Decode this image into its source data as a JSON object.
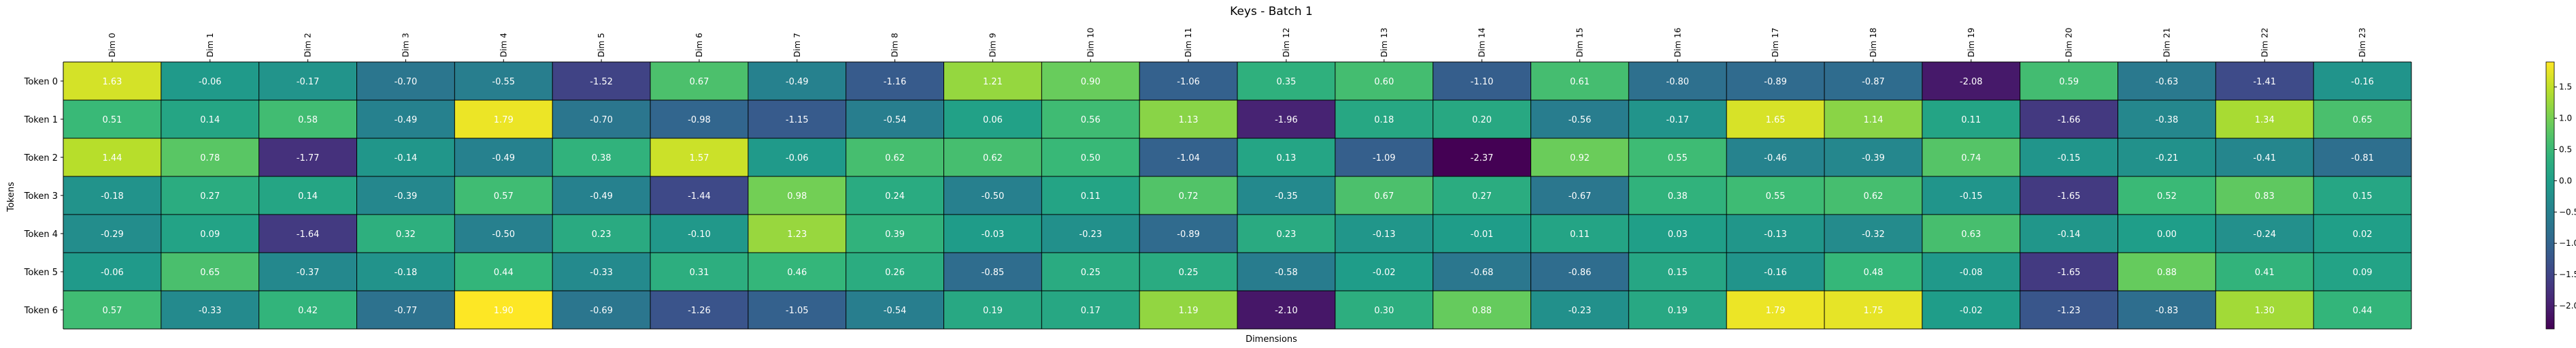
{
  "chart_data": {
    "type": "heatmap",
    "title": "Keys - Batch 1",
    "xlabel": "Dimensions",
    "ylabel": "Tokens",
    "x_labels": [
      "Dim 0",
      "Dim 1",
      "Dim 2",
      "Dim 3",
      "Dim 4",
      "Dim 5",
      "Dim 6",
      "Dim 7",
      "Dim 8",
      "Dim 9",
      "Dim 10",
      "Dim 11",
      "Dim 12",
      "Dim 13",
      "Dim 14",
      "Dim 15",
      "Dim 16",
      "Dim 17",
      "Dim 18",
      "Dim 19",
      "Dim 20",
      "Dim 21",
      "Dim 22",
      "Dim 23"
    ],
    "y_labels": [
      "Token 0",
      "Token 1",
      "Token 2",
      "Token 3",
      "Token 4",
      "Token 5",
      "Token 6"
    ],
    "values": [
      [
        1.63,
        -0.06,
        -0.17,
        -0.7,
        -0.55,
        -1.52,
        0.67,
        -0.49,
        -1.16,
        1.21,
        0.9,
        -1.06,
        0.35,
        0.6,
        -1.1,
        0.61,
        -0.8,
        -0.89,
        -0.87,
        -2.08,
        0.59,
        -0.63,
        -1.41,
        -0.16
      ],
      [
        0.51,
        0.14,
        0.58,
        -0.49,
        1.79,
        -0.7,
        -0.98,
        -1.15,
        -0.54,
        0.06,
        0.56,
        1.13,
        -1.96,
        0.18,
        0.2,
        -0.56,
        -0.17,
        1.65,
        1.14,
        0.11,
        -1.66,
        -0.38,
        1.34,
        0.65
      ],
      [
        1.44,
        0.78,
        -1.77,
        -0.14,
        -0.49,
        0.38,
        1.57,
        -0.06,
        0.62,
        0.62,
        0.5,
        -1.04,
        0.13,
        -1.09,
        -2.37,
        0.92,
        0.55,
        -0.46,
        -0.39,
        0.74,
        -0.15,
        -0.21,
        -0.41,
        -0.81
      ],
      [
        -0.18,
        0.27,
        0.14,
        -0.39,
        0.57,
        -0.49,
        -1.44,
        0.98,
        0.24,
        -0.5,
        0.11,
        0.72,
        -0.35,
        0.67,
        0.27,
        -0.67,
        0.38,
        0.55,
        0.62,
        -0.15,
        -1.65,
        0.52,
        0.83,
        0.15
      ],
      [
        -0.29,
        0.09,
        -1.64,
        0.32,
        -0.5,
        0.23,
        -0.1,
        1.23,
        0.39,
        -0.03,
        -0.23,
        -0.89,
        0.23,
        -0.13,
        -0.01,
        0.11,
        0.03,
        -0.13,
        -0.32,
        0.63,
        -0.14,
        0.0,
        -0.24,
        0.02
      ],
      [
        -0.06,
        0.65,
        -0.37,
        -0.18,
        0.44,
        -0.33,
        0.31,
        0.46,
        0.26,
        -0.85,
        0.25,
        0.25,
        -0.58,
        -0.02,
        -0.68,
        -0.86,
        0.15,
        -0.16,
        0.48,
        -0.08,
        -1.65,
        0.88,
        0.41,
        0.09
      ],
      [
        0.57,
        -0.33,
        0.42,
        -0.77,
        1.9,
        -0.69,
        -1.26,
        -1.05,
        -0.54,
        0.19,
        0.17,
        1.19,
        -2.1,
        0.3,
        0.88,
        -0.23,
        0.19,
        1.79,
        1.75,
        -0.02,
        -1.23,
        -0.83,
        1.3,
        0.44
      ]
    ],
    "colormap": "viridis",
    "value_range": [
      -2.37,
      1.9
    ],
    "colorbar_ticks": [
      "1.5",
      "1.0",
      "0.5",
      "0.0",
      "−0.5",
      "−1.0",
      "−1.5",
      "−2.0"
    ],
    "colorbar_tick_values": [
      1.5,
      1.0,
      0.5,
      0.0,
      -0.5,
      -1.0,
      -1.5,
      -2.0
    ],
    "grid": true,
    "grid_color": "#000000",
    "cell_text_color": "#ffffff"
  }
}
